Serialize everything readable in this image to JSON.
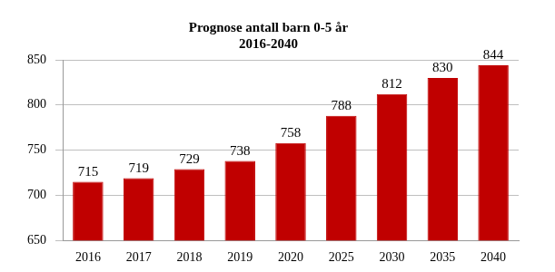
{
  "chart_data": {
    "type": "bar",
    "title": "Prognose antall barn 0-5 år",
    "subtitle": "2016-2040",
    "categories": [
      "2016",
      "2017",
      "2018",
      "2019",
      "2020",
      "2025",
      "2030",
      "2035",
      "2040"
    ],
    "values": [
      715,
      719,
      729,
      738,
      758,
      788,
      812,
      830,
      844
    ],
    "color": "#c00000",
    "ylim": [
      650,
      850
    ],
    "yticks": [
      650,
      700,
      750,
      800,
      850
    ],
    "grid": true,
    "data_labels": true
  }
}
